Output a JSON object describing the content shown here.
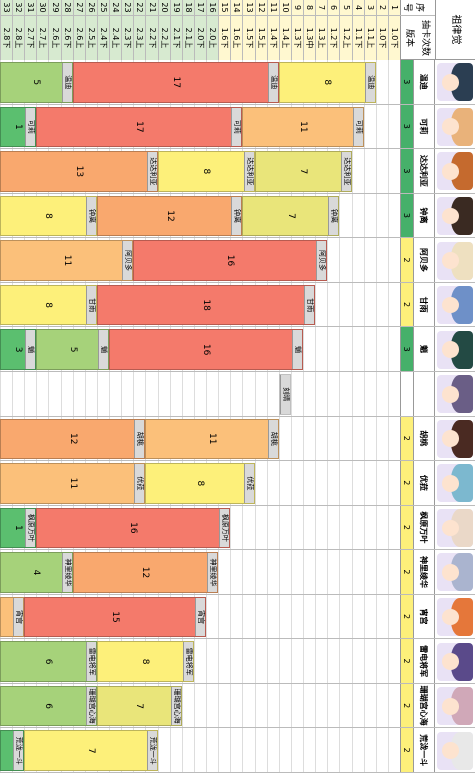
{
  "title": "祖律觉",
  "left_headers": {
    "seq": "序号",
    "count_label": "抽卡次数",
    "version_label": "版本"
  },
  "rows": [
    {
      "n": "1",
      "v": "1.0下"
    },
    {
      "n": "2",
      "v": "1.0下"
    },
    {
      "n": "3",
      "v": "1.1上"
    },
    {
      "n": "4",
      "v": "1.1下"
    },
    {
      "n": "5",
      "v": "1.2上"
    },
    {
      "n": "6",
      "v": "1.2下"
    },
    {
      "n": "7",
      "v": "1.3上"
    },
    {
      "n": "8",
      "v": "1.3中"
    },
    {
      "n": "9",
      "v": "1.3下"
    },
    {
      "n": "10",
      "v": "1.4上"
    },
    {
      "n": "11",
      "v": "1.4下"
    },
    {
      "n": "12",
      "v": "1.5上"
    },
    {
      "n": "13",
      "v": "1.5下"
    },
    {
      "n": "14",
      "v": "1.6上"
    },
    {
      "n": "15",
      "v": "1.6下"
    },
    {
      "n": "16",
      "v": "2.0上"
    },
    {
      "n": "17",
      "v": "2.0下"
    },
    {
      "n": "18",
      "v": "2.1上"
    },
    {
      "n": "19",
      "v": "2.1下"
    },
    {
      "n": "20",
      "v": "2.2上"
    },
    {
      "n": "21",
      "v": "2.2下"
    },
    {
      "n": "22",
      "v": "2.3上"
    },
    {
      "n": "23",
      "v": "2.3下"
    },
    {
      "n": "24",
      "v": "2.4上"
    },
    {
      "n": "25",
      "v": "2.4下"
    },
    {
      "n": "26",
      "v": "2.5上"
    },
    {
      "n": "27",
      "v": "2.6上"
    },
    {
      "n": "28",
      "v": "2.6下"
    },
    {
      "n": "29",
      "v": "2.6上"
    },
    {
      "n": "30",
      "v": "2.7上"
    },
    {
      "n": "31",
      "v": "2.7下"
    },
    {
      "n": "32",
      "v": "2.8上"
    },
    {
      "n": "33",
      "v": "2.8下"
    }
  ],
  "characters": [
    {
      "name": "温迪",
      "count": "3",
      "hair": "#2b3e52",
      "color": "#46b06a",
      "bands": [
        {
          "label": "温迪",
          "value": "8",
          "color": "#fdf07a",
          "start": 2,
          "len": 8
        },
        {
          "label": "温迪",
          "value": "17",
          "color": "#f47a6b",
          "start": 10,
          "len": 17
        },
        {
          "label": "温迪",
          "value": "5",
          "color": "#a6d27a",
          "start": 27,
          "len": 6
        }
      ]
    },
    {
      "name": "可莉",
      "count": "3",
      "hair": "#e9b27a",
      "color": "#46b06a",
      "bands": [
        {
          "label": "可莉",
          "value": "11",
          "color": "#fbc07a",
          "start": 3,
          "len": 10
        },
        {
          "label": "可莉",
          "value": "17",
          "color": "#f47a6b",
          "start": 13,
          "len": 17
        },
        {
          "label": "可莉",
          "value": "1",
          "color": "#5bbf6f",
          "start": 30,
          "len": 3
        }
      ]
    },
    {
      "name": "达达利亚",
      "count": "3",
      "hair": "#c56a2e",
      "color": "#46b06a",
      "bands": [
        {
          "label": "达达利亚",
          "value": "7",
          "color": "#e9e57a",
          "start": 4,
          "len": 8
        },
        {
          "label": "达达利亚",
          "value": "8",
          "color": "#fdf07a",
          "start": 12,
          "len": 8
        },
        {
          "label": "达达利亚",
          "value": "13",
          "color": "#f9a86e",
          "start": 20,
          "len": 13
        }
      ]
    },
    {
      "name": "钟离",
      "count": "3",
      "hair": "#3a2a22",
      "color": "#46b06a",
      "bands": [
        {
          "label": "钟离",
          "value": "7",
          "color": "#e9e57a",
          "start": 5,
          "len": 8
        },
        {
          "label": "钟离",
          "value": "12",
          "color": "#f9a86e",
          "start": 13,
          "len": 12
        },
        {
          "label": "钟离",
          "value": "8",
          "color": "#fdf07a",
          "start": 25,
          "len": 8
        }
      ]
    },
    {
      "name": "阿贝多",
      "count": "2",
      "hair": "#eee0c0",
      "color": "#fdf07a",
      "bands": [
        {
          "label": "阿贝多",
          "value": "16",
          "color": "#f47a6b",
          "start": 6,
          "len": 16
        },
        {
          "label": "阿贝多",
          "value": "11",
          "color": "#fbc07a",
          "start": 22,
          "len": 11
        }
      ]
    },
    {
      "name": "甘雨",
      "count": "2",
      "hair": "#6e90c8",
      "color": "#fdf07a",
      "bands": [
        {
          "label": "甘雨",
          "value": "18",
          "color": "#f47a6b",
          "start": 7,
          "len": 18
        },
        {
          "label": "甘雨",
          "value": "8",
          "color": "#fdf07a",
          "start": 25,
          "len": 8
        }
      ]
    },
    {
      "name": "魈",
      "count": "3",
      "hair": "#234a44",
      "color": "#46b06a",
      "bands": [
        {
          "label": "魈",
          "value": "16",
          "color": "#f47a6b",
          "start": 8,
          "len": 16
        },
        {
          "label": "魈",
          "value": "5",
          "color": "#a6d27a",
          "start": 24,
          "len": 6
        },
        {
          "label": "魈",
          "value": "3",
          "color": "#5bbf6f",
          "start": 30,
          "len": 3
        }
      ]
    },
    {
      "name": "",
      "count": "",
      "hair": "#6a5e86",
      "color": "#ffffff",
      "bands": [
        {
          "label": "刻晴",
          "value": "",
          "color": "#ffffff",
          "start": 9,
          "len": 1
        }
      ]
    },
    {
      "name": "胡桃",
      "count": "2",
      "hair": "#4a2a22",
      "color": "#fdf07a",
      "bands": [
        {
          "label": "胡桃",
          "value": "11",
          "color": "#fbc07a",
          "start": 10,
          "len": 11
        },
        {
          "label": "胡桃",
          "value": "12",
          "color": "#f9a86e",
          "start": 21,
          "len": 12
        }
      ]
    },
    {
      "name": "优菈",
      "count": "2",
      "hair": "#7cb8cf",
      "color": "#fdf07a",
      "bands": [
        {
          "label": "优菈",
          "value": "8",
          "color": "#fdf07a",
          "start": 12,
          "len": 9
        },
        {
          "label": "优菈",
          "value": "11",
          "color": "#fbc07a",
          "start": 21,
          "len": 12
        }
      ]
    },
    {
      "name": "枫原万叶",
      "count": "2",
      "hair": "#ead8c8",
      "color": "#fdf07a",
      "bands": [
        {
          "label": "枫原万叶",
          "value": "16",
          "color": "#f47a6b",
          "start": 14,
          "len": 16
        },
        {
          "label": "枫原万叶",
          "value": "1",
          "color": "#5bbf6f",
          "start": 30,
          "len": 3
        }
      ]
    },
    {
      "name": "神里绫华",
      "count": "2",
      "hair": "#aab4cf",
      "color": "#fdf07a",
      "bands": [
        {
          "label": "神里绫华",
          "value": "12",
          "color": "#f9a86e",
          "start": 15,
          "len": 12
        },
        {
          "label": "神里绫华",
          "value": "4",
          "color": "#a6d27a",
          "start": 27,
          "len": 6
        }
      ]
    },
    {
      "name": "宵宫",
      "count": "2",
      "hair": "#e5773a",
      "color": "#fdf07a",
      "bands": [
        {
          "label": "宵宫",
          "value": "15",
          "color": "#f47a6b",
          "start": 16,
          "len": 15
        },
        {
          "label": "宵宫",
          "value": "",
          "color": "#fbc07a",
          "start": 31,
          "len": 2
        }
      ]
    },
    {
      "name": "雷电将军",
      "count": "2",
      "hair": "#5a4a8a",
      "color": "#fdf07a",
      "bands": [
        {
          "label": "雷电将军",
          "value": "8",
          "color": "#fdf07a",
          "start": 17,
          "len": 8
        },
        {
          "label": "雷电将军",
          "value": "6",
          "color": "#a6d27a",
          "start": 25,
          "len": 8
        }
      ]
    },
    {
      "name": "珊瑚宫心海",
      "count": "2",
      "hair": "#d0a8b8",
      "color": "#fdf07a",
      "bands": [
        {
          "label": "珊瑚宫心海",
          "value": "7",
          "color": "#e9e57a",
          "start": 18,
          "len": 7
        },
        {
          "label": "珊瑚宫心海",
          "value": "6",
          "color": "#a6d27a",
          "start": 25,
          "len": 8
        }
      ]
    },
    {
      "name": "荒泷一斗",
      "count": "2",
      "hair": "#e8e8e8",
      "color": "#fdf07a",
      "bands": [
        {
          "label": "荒泷一斗",
          "value": "7",
          "color": "#fdf07a",
          "start": 20,
          "len": 11
        },
        {
          "label": "荒泷一斗",
          "value": "",
          "color": "#5bbf6f",
          "start": 31,
          "len": 2
        }
      ]
    }
  ]
}
